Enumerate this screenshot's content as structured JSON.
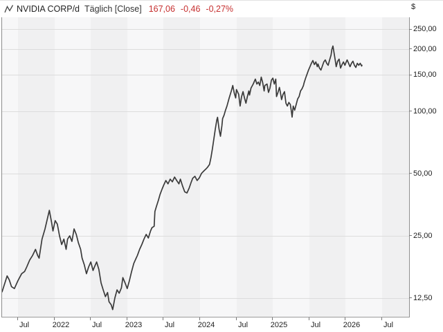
{
  "header": {
    "symbol": "NVIDIA CORP/d",
    "interval": "Täglich [Close]",
    "last_price": "167,06",
    "change_abs": "-0,46",
    "change_pct": "-0,27%",
    "quote_color": "#c62f2f",
    "chart_type_icon": "line-zigzag-icon"
  },
  "axis": {
    "unit": "$",
    "y_ticks": [
      {
        "label": "250,00",
        "value": 250
      },
      {
        "label": "200,00",
        "value": 200
      },
      {
        "label": "150,00",
        "value": 150
      },
      {
        "label": "100,00",
        "value": 100
      },
      {
        "label": "50,00",
        "value": 50
      },
      {
        "label": "25,00",
        "value": 25
      },
      {
        "label": "12,50",
        "value": 12.5
      }
    ],
    "x_ticks": [
      {
        "label": "Jul",
        "year": 2021.5
      },
      {
        "label": "2022",
        "year": 2022.0
      },
      {
        "label": "Jul",
        "year": 2022.5
      },
      {
        "label": "2023",
        "year": 2023.0
      },
      {
        "label": "Jul",
        "year": 2023.5
      },
      {
        "label": "2024",
        "year": 2024.0
      },
      {
        "label": "Jul",
        "year": 2024.5
      },
      {
        "label": "2025",
        "year": 2025.0
      },
      {
        "label": "Jul",
        "year": 2025.5
      },
      {
        "label": "2026",
        "year": 2026.0
      },
      {
        "label": "Jul",
        "year": 2026.5
      }
    ]
  },
  "chart_data": {
    "type": "line",
    "title": "NVIDIA CORP daily close",
    "xlabel": "",
    "ylabel": "$",
    "y_scale": "log",
    "x_unit": "decimal_year",
    "x_domain": [
      2021.281,
      2026.871
    ],
    "y_domain": [
      10.15,
      285
    ],
    "grid": "horizontal-only",
    "legend": "none",
    "stripe_color_light": "#f7f7f8",
    "stripe_color_dark": "#f0f0f1",
    "grid_color": "#dcdcdc",
    "line_color": "#3a3a3a",
    "points": [
      [
        2021.281,
        13.4
      ],
      [
        2021.32,
        14.8
      ],
      [
        2021.35,
        16.0
      ],
      [
        2021.38,
        15.3
      ],
      [
        2021.41,
        14.2
      ],
      [
        2021.45,
        13.9
      ],
      [
        2021.5,
        15.2
      ],
      [
        2021.55,
        16.4
      ],
      [
        2021.59,
        16.8
      ],
      [
        2021.62,
        17.7
      ],
      [
        2021.66,
        19.1
      ],
      [
        2021.7,
        20.1
      ],
      [
        2021.74,
        21.5
      ],
      [
        2021.77,
        20.1
      ],
      [
        2021.79,
        19.5
      ],
      [
        2021.83,
        24.1
      ],
      [
        2021.87,
        27.0
      ],
      [
        2021.91,
        31.0
      ],
      [
        2021.93,
        33.2
      ],
      [
        2021.96,
        29.2
      ],
      [
        2021.98,
        26.4
      ],
      [
        2022.01,
        29.6
      ],
      [
        2022.04,
        28.5
      ],
      [
        2022.07,
        25.0
      ],
      [
        2022.1,
        22.7
      ],
      [
        2022.13,
        24.1
      ],
      [
        2022.16,
        21.5
      ],
      [
        2022.18,
        24.1
      ],
      [
        2022.21,
        25.0
      ],
      [
        2022.24,
        23.5
      ],
      [
        2022.27,
        27.0
      ],
      [
        2022.3,
        25.4
      ],
      [
        2022.33,
        23.1
      ],
      [
        2022.36,
        21.5
      ],
      [
        2022.38,
        19.5
      ],
      [
        2022.41,
        18.1
      ],
      [
        2022.44,
        16.4
      ],
      [
        2022.47,
        17.7
      ],
      [
        2022.5,
        18.7
      ],
      [
        2022.53,
        17.0
      ],
      [
        2022.55,
        17.7
      ],
      [
        2022.58,
        18.7
      ],
      [
        2022.61,
        17.2
      ],
      [
        2022.64,
        14.8
      ],
      [
        2022.67,
        13.7
      ],
      [
        2022.7,
        12.7
      ],
      [
        2022.73,
        13.3
      ],
      [
        2022.75,
        12.0
      ],
      [
        2022.78,
        11.6
      ],
      [
        2022.8,
        11.0
      ],
      [
        2022.83,
        12.5
      ],
      [
        2022.86,
        13.7
      ],
      [
        2022.89,
        13.2
      ],
      [
        2022.92,
        14.0
      ],
      [
        2022.94,
        15.7
      ],
      [
        2022.97,
        14.8
      ],
      [
        2023.0,
        13.9
      ],
      [
        2023.03,
        15.2
      ],
      [
        2023.06,
        16.8
      ],
      [
        2023.09,
        18.4
      ],
      [
        2023.12,
        19.4
      ],
      [
        2023.14,
        20.1
      ],
      [
        2023.17,
        21.5
      ],
      [
        2023.2,
        22.7
      ],
      [
        2023.23,
        24.1
      ],
      [
        2023.26,
        25.4
      ],
      [
        2023.29,
        24.4
      ],
      [
        2023.32,
        26.4
      ],
      [
        2023.34,
        27.4
      ],
      [
        2023.37,
        27.8
      ],
      [
        2023.38,
        32.8
      ],
      [
        2023.4,
        34.6
      ],
      [
        2023.43,
        37.3
      ],
      [
        2023.45,
        39.6
      ],
      [
        2023.48,
        42.2
      ],
      [
        2023.5,
        43.9
      ],
      [
        2023.53,
        46.3
      ],
      [
        2023.56,
        44.6
      ],
      [
        2023.59,
        47.0
      ],
      [
        2023.62,
        45.6
      ],
      [
        2023.65,
        48.1
      ],
      [
        2023.68,
        46.3
      ],
      [
        2023.71,
        44.6
      ],
      [
        2023.73,
        47.0
      ],
      [
        2023.76,
        43.5
      ],
      [
        2023.79,
        40.8
      ],
      [
        2023.82,
        40.3
      ],
      [
        2023.85,
        42.5
      ],
      [
        2023.88,
        45.6
      ],
      [
        2023.9,
        47.5
      ],
      [
        2023.93,
        48.5
      ],
      [
        2023.96,
        46.3
      ],
      [
        2023.99,
        47.7
      ],
      [
        2024.02,
        50.1
      ],
      [
        2024.05,
        51.4
      ],
      [
        2024.08,
        52.6
      ],
      [
        2024.1,
        53.5
      ],
      [
        2024.13,
        55.4
      ],
      [
        2024.15,
        59.8
      ],
      [
        2024.17,
        66.0
      ],
      [
        2024.19,
        73.7
      ],
      [
        2024.21,
        82.3
      ],
      [
        2024.23,
        90.8
      ],
      [
        2024.24,
        93.6
      ],
      [
        2024.26,
        82.3
      ],
      [
        2024.28,
        75.8
      ],
      [
        2024.3,
        85.3
      ],
      [
        2024.31,
        92.2
      ],
      [
        2024.33,
        95.8
      ],
      [
        2024.35,
        101.3
      ],
      [
        2024.37,
        106.1
      ],
      [
        2024.4,
        116.1
      ],
      [
        2024.43,
        125.5
      ],
      [
        2024.45,
        133.4
      ],
      [
        2024.47,
        122.6
      ],
      [
        2024.49,
        116.1
      ],
      [
        2024.5,
        127.4
      ],
      [
        2024.53,
        120.8
      ],
      [
        2024.55,
        106.1
      ],
      [
        2024.57,
        117.9
      ],
      [
        2024.59,
        124.5
      ],
      [
        2024.61,
        116.1
      ],
      [
        2024.63,
        109.5
      ],
      [
        2024.65,
        117.9
      ],
      [
        2024.67,
        125.5
      ],
      [
        2024.68,
        119.9
      ],
      [
        2024.7,
        129.5
      ],
      [
        2024.73,
        135.5
      ],
      [
        2024.76,
        143.1
      ],
      [
        2024.78,
        135.5
      ],
      [
        2024.8,
        138.6
      ],
      [
        2024.82,
        133.4
      ],
      [
        2024.84,
        146.4
      ],
      [
        2024.86,
        137.6
      ],
      [
        2024.88,
        125.5
      ],
      [
        2024.89,
        133.4
      ],
      [
        2024.92,
        135.5
      ],
      [
        2024.94,
        123.5
      ],
      [
        2024.96,
        129.5
      ],
      [
        2024.98,
        141.5
      ],
      [
        2025.0,
        144.7
      ],
      [
        2025.02,
        135.5
      ],
      [
        2025.04,
        143.1
      ],
      [
        2025.05,
        117.9
      ],
      [
        2025.07,
        123.5
      ],
      [
        2025.09,
        130.5
      ],
      [
        2025.1,
        125.5
      ],
      [
        2025.12,
        114.0
      ],
      [
        2025.14,
        120.8
      ],
      [
        2025.16,
        124.5
      ],
      [
        2025.18,
        109.5
      ],
      [
        2025.2,
        106.1
      ],
      [
        2025.22,
        110.4
      ],
      [
        2025.24,
        108.0
      ],
      [
        2025.255,
        99.8
      ],
      [
        2025.264,
        93.8
      ],
      [
        2025.28,
        106.1
      ],
      [
        2025.3,
        101.3
      ],
      [
        2025.32,
        108.0
      ],
      [
        2025.34,
        114.8
      ],
      [
        2025.36,
        117.9
      ],
      [
        2025.38,
        125.5
      ],
      [
        2025.4,
        128.5
      ],
      [
        2025.42,
        133.4
      ],
      [
        2025.43,
        137.6
      ],
      [
        2025.45,
        144.7
      ],
      [
        2025.47,
        151.3
      ],
      [
        2025.49,
        158.3
      ],
      [
        2025.51,
        164.4
      ],
      [
        2025.53,
        170.8
      ],
      [
        2025.55,
        176.1
      ],
      [
        2025.57,
        168.3
      ],
      [
        2025.59,
        173.4
      ],
      [
        2025.61,
        164.4
      ],
      [
        2025.62,
        169.5
      ],
      [
        2025.64,
        161.9
      ],
      [
        2025.66,
        158.3
      ],
      [
        2025.68,
        165.6
      ],
      [
        2025.7,
        173.4
      ],
      [
        2025.72,
        177.4
      ],
      [
        2025.74,
        170.8
      ],
      [
        2025.76,
        167.0
      ],
      [
        2025.78,
        177.4
      ],
      [
        2025.8,
        187.3
      ],
      [
        2025.81,
        199.1
      ],
      [
        2025.825,
        207.0
      ],
      [
        2025.84,
        191.8
      ],
      [
        2025.86,
        173.4
      ],
      [
        2025.87,
        164.4
      ],
      [
        2025.89,
        174.7
      ],
      [
        2025.91,
        178.8
      ],
      [
        2025.93,
        161.9
      ],
      [
        2025.95,
        168.3
      ],
      [
        2025.97,
        173.4
      ],
      [
        2025.99,
        167.0
      ],
      [
        2026.0,
        170.8
      ],
      [
        2026.02,
        177.4
      ],
      [
        2026.04,
        170.8
      ],
      [
        2026.06,
        164.4
      ],
      [
        2026.08,
        170.8
      ],
      [
        2026.1,
        174.7
      ],
      [
        2026.12,
        167.0
      ],
      [
        2026.14,
        163.1
      ],
      [
        2026.16,
        170.8
      ],
      [
        2026.18,
        167.0
      ],
      [
        2026.2,
        170.8
      ],
      [
        2026.22,
        165.6
      ],
      [
        2026.224,
        167.06
      ]
    ]
  }
}
